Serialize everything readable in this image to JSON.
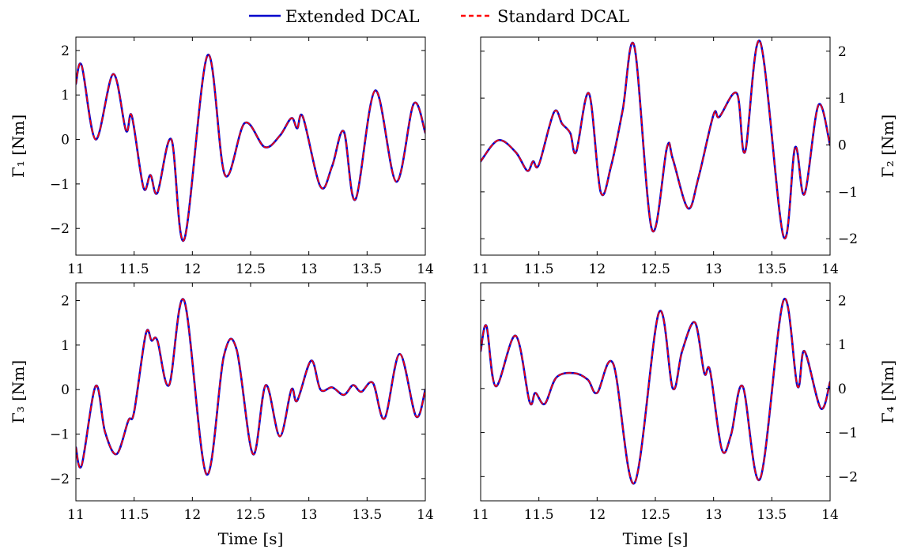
{
  "chart_data": {
    "type": "line",
    "legend": {
      "placement": "top-center",
      "entries": [
        {
          "label": "Extended DCAL",
          "color": "#0000cc",
          "style": "solid"
        },
        {
          "label": "Standard DCAL",
          "color": "#ff0000",
          "style": "dashed"
        }
      ]
    },
    "panels": [
      {
        "id": "p1",
        "ylabel": "Γ₁ [Nm]",
        "xlabel": "",
        "y_axis_side": "left",
        "xlim": [
          11,
          14
        ],
        "ylim": [
          -2.6,
          2.3
        ],
        "xticks": [
          11,
          11.5,
          12,
          12.5,
          13,
          13.5,
          14
        ],
        "xtick_labels": [
          "11",
          "11.5",
          "12",
          "12.5",
          "13",
          "13.5",
          "14"
        ],
        "yticks": [
          -2,
          -1,
          0,
          1,
          2
        ],
        "ytick_labels": [
          "−2",
          "−1",
          "0",
          "1",
          "2"
        ],
        "series": [
          {
            "name": "Extended DCAL",
            "x": [
              11.0,
              11.05,
              11.17,
              11.32,
              11.43,
              11.48,
              11.58,
              11.64,
              11.7,
              11.82,
              11.93,
              12.13,
              12.28,
              12.45,
              12.62,
              12.75,
              12.85,
              12.9,
              12.95,
              13.1,
              13.2,
              13.3,
              13.4,
              13.57,
              13.75,
              13.9,
              14.0
            ],
            "y": [
              1.25,
              1.66,
              0.0,
              1.47,
              0.2,
              0.53,
              -1.08,
              -0.8,
              -1.2,
              0.0,
              -2.25,
              1.89,
              -0.8,
              0.37,
              -0.17,
              0.08,
              0.48,
              0.25,
              0.5,
              -1.06,
              -0.6,
              0.18,
              -1.35,
              1.1,
              -0.95,
              0.8,
              0.15
            ]
          },
          {
            "name": "Standard DCAL",
            "x": [
              11.0,
              11.05,
              11.17,
              11.32,
              11.43,
              11.48,
              11.58,
              11.64,
              11.7,
              11.82,
              11.93,
              12.13,
              12.28,
              12.45,
              12.62,
              12.75,
              12.85,
              12.9,
              12.95,
              13.1,
              13.2,
              13.3,
              13.4,
              13.57,
              13.75,
              13.9,
              14.0
            ],
            "y": [
              1.25,
              1.66,
              0.0,
              1.47,
              0.2,
              0.53,
              -1.08,
              -0.8,
              -1.2,
              0.0,
              -2.25,
              1.89,
              -0.8,
              0.37,
              -0.17,
              0.08,
              0.48,
              0.25,
              0.5,
              -1.06,
              -0.6,
              0.18,
              -1.35,
              1.1,
              -0.95,
              0.8,
              0.15
            ]
          }
        ]
      },
      {
        "id": "p2",
        "ylabel": "Γ₂ [Nm]",
        "xlabel": "",
        "y_axis_side": "right",
        "xlim": [
          11,
          14
        ],
        "ylim": [
          -2.35,
          2.3
        ],
        "xticks": [
          11,
          11.5,
          12,
          12.5,
          13,
          13.5,
          14
        ],
        "xtick_labels": [
          "11",
          "11.5",
          "12",
          "12.5",
          "13",
          "13.5",
          "14"
        ],
        "yticks": [
          -2,
          -1,
          0,
          1,
          2
        ],
        "ytick_labels": [
          "−2",
          "−1",
          "0",
          "1",
          "2"
        ],
        "series": [
          {
            "name": "Extended DCAL",
            "x": [
              11.0,
              11.15,
              11.3,
              11.4,
              11.45,
              11.5,
              11.63,
              11.7,
              11.77,
              11.82,
              11.93,
              12.03,
              12.12,
              12.22,
              12.32,
              12.47,
              12.6,
              12.65,
              12.78,
              12.87,
              13.0,
              13.05,
              13.2,
              13.27,
              13.4,
              13.6,
              13.7,
              13.78,
              13.9,
              14.0
            ],
            "y": [
              -0.35,
              0.1,
              -0.15,
              -0.55,
              -0.35,
              -0.42,
              0.7,
              0.45,
              0.25,
              -0.15,
              1.1,
              -1.0,
              -0.45,
              0.75,
              2.1,
              -1.8,
              -0.05,
              -0.3,
              -1.35,
              -0.7,
              0.65,
              0.6,
              1.1,
              -0.15,
              2.2,
              -1.95,
              -0.05,
              -1.05,
              0.85,
              0.0
            ]
          },
          {
            "name": "Standard DCAL",
            "x": [
              11.0,
              11.15,
              11.3,
              11.4,
              11.45,
              11.5,
              11.63,
              11.7,
              11.77,
              11.82,
              11.93,
              12.03,
              12.12,
              12.22,
              12.32,
              12.47,
              12.6,
              12.65,
              12.78,
              12.87,
              13.0,
              13.05,
              13.2,
              13.27,
              13.4,
              13.6,
              13.7,
              13.78,
              13.9,
              14.0
            ],
            "y": [
              -0.35,
              0.1,
              -0.15,
              -0.55,
              -0.35,
              -0.42,
              0.7,
              0.45,
              0.25,
              -0.15,
              1.1,
              -1.0,
              -0.45,
              0.75,
              2.1,
              -1.8,
              -0.05,
              -0.3,
              -1.35,
              -0.7,
              0.65,
              0.6,
              1.1,
              -0.15,
              2.2,
              -1.95,
              -0.05,
              -1.05,
              0.85,
              0.0
            ]
          }
        ]
      },
      {
        "id": "p3",
        "ylabel": "Γ₃ [Nm]",
        "xlabel": "Time [s]",
        "y_axis_side": "left",
        "xlim": [
          11,
          14
        ],
        "ylim": [
          -2.5,
          2.4
        ],
        "xticks": [
          11,
          11.5,
          12,
          12.5,
          13,
          13.5,
          14
        ],
        "xtick_labels": [
          "11",
          "11.5",
          "12",
          "12.5",
          "13",
          "13.5",
          "14"
        ],
        "yticks": [
          -2,
          -1,
          0,
          1,
          2
        ],
        "ytick_labels": [
          "−2",
          "−1",
          "0",
          "1",
          "2"
        ],
        "series": [
          {
            "name": "Extended DCAL",
            "x": [
              11.0,
              11.05,
              11.17,
              11.25,
              11.35,
              11.45,
              11.5,
              11.6,
              11.65,
              11.7,
              11.8,
              11.93,
              12.12,
              12.27,
              12.38,
              12.52,
              12.63,
              12.75,
              12.85,
              12.9,
              13.02,
              13.1,
              13.2,
              13.3,
              13.38,
              13.45,
              13.55,
              13.65,
              13.78,
              13.92,
              14.0
            ],
            "y": [
              -1.3,
              -1.7,
              0.08,
              -0.95,
              -1.45,
              -0.7,
              -0.5,
              1.25,
              1.1,
              1.1,
              0.1,
              2.0,
              -1.9,
              0.75,
              0.9,
              -1.45,
              0.1,
              -1.05,
              0.0,
              -0.25,
              0.65,
              0.0,
              0.05,
              -0.12,
              0.1,
              -0.05,
              0.15,
              -0.65,
              0.8,
              -0.6,
              0.0
            ]
          },
          {
            "name": "Standard DCAL",
            "x": [
              11.0,
              11.05,
              11.17,
              11.25,
              11.35,
              11.45,
              11.5,
              11.6,
              11.65,
              11.7,
              11.8,
              11.93,
              12.12,
              12.27,
              12.38,
              12.52,
              12.63,
              12.75,
              12.85,
              12.9,
              13.02,
              13.1,
              13.2,
              13.3,
              13.38,
              13.45,
              13.55,
              13.65,
              13.78,
              13.92,
              14.0
            ],
            "y": [
              -1.3,
              -1.7,
              0.08,
              -0.95,
              -1.45,
              -0.7,
              -0.5,
              1.25,
              1.1,
              1.1,
              0.1,
              2.0,
              -1.9,
              0.75,
              0.9,
              -1.45,
              0.1,
              -1.05,
              0.0,
              -0.25,
              0.65,
              0.0,
              0.05,
              -0.12,
              0.1,
              -0.05,
              0.15,
              -0.65,
              0.8,
              -0.6,
              0.0
            ]
          }
        ]
      },
      {
        "id": "p4",
        "ylabel": "Γ₄ [Nm]",
        "xlabel": "Time [s]",
        "y_axis_side": "right",
        "xlim": [
          11,
          14
        ],
        "ylim": [
          -2.55,
          2.4
        ],
        "xticks": [
          11,
          11.5,
          12,
          12.5,
          13,
          13.5,
          14
        ],
        "xtick_labels": [
          "11",
          "11.5",
          "12",
          "12.5",
          "13",
          "13.5",
          "14"
        ],
        "yticks": [
          -2,
          -1,
          0,
          1,
          2
        ],
        "ytick_labels": [
          "−2",
          "−1",
          "0",
          "1",
          "2"
        ],
        "series": [
          {
            "name": "Extended DCAL",
            "x": [
              11.0,
              11.05,
              11.13,
              11.3,
              11.42,
              11.47,
              11.55,
              11.65,
              11.8,
              11.92,
              12.0,
              12.14,
              12.32,
              12.53,
              12.65,
              12.73,
              12.84,
              12.92,
              12.97,
              13.07,
              13.15,
              13.25,
              13.4,
              13.6,
              13.72,
              13.78,
              13.92,
              14.0
            ],
            "y": [
              0.85,
              1.42,
              0.05,
              1.2,
              -0.3,
              -0.1,
              -0.35,
              0.25,
              0.35,
              0.2,
              -0.1,
              0.55,
              -2.15,
              1.72,
              0.0,
              0.85,
              1.5,
              0.35,
              0.4,
              -1.38,
              -1.05,
              0.05,
              -2.05,
              2.0,
              0.05,
              0.85,
              -0.45,
              0.15
            ]
          },
          {
            "name": "Standard DCAL",
            "x": [
              11.0,
              11.05,
              11.13,
              11.3,
              11.42,
              11.47,
              11.55,
              11.65,
              11.8,
              11.92,
              12.0,
              12.14,
              12.32,
              12.53,
              12.65,
              12.73,
              12.84,
              12.92,
              12.97,
              13.07,
              13.15,
              13.25,
              13.4,
              13.6,
              13.72,
              13.78,
              13.92,
              14.0
            ],
            "y": [
              0.85,
              1.42,
              0.05,
              1.2,
              -0.3,
              -0.1,
              -0.35,
              0.25,
              0.35,
              0.2,
              -0.1,
              0.55,
              -2.15,
              1.72,
              0.0,
              0.85,
              1.5,
              0.35,
              0.4,
              -1.38,
              -1.05,
              0.05,
              -2.05,
              2.0,
              0.05,
              0.85,
              -0.45,
              0.15
            ]
          }
        ]
      }
    ]
  }
}
